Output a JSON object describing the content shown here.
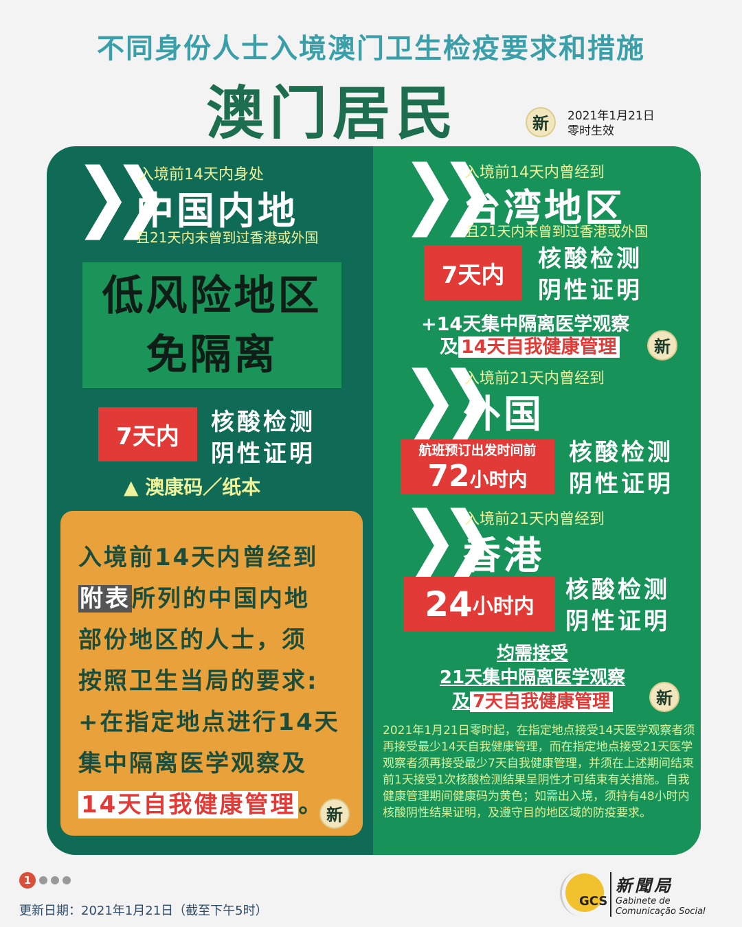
{
  "header": {
    "title": "不同身份人士入境澳门卫生检疫要求和措施",
    "subject": "澳门居民",
    "new_badge": "新",
    "effective_date": "2021年1月21日",
    "effective_time": "零时生效"
  },
  "mainland": {
    "pre": "入境前14天内身处",
    "region": "中国内地",
    "cond": "且21天内未曾到过香港或外国",
    "low_risk_1": "低风险地区",
    "low_risk_2": "免隔离",
    "test_time": "7天内",
    "test_1": "核酸检测",
    "test_2": "阴性证明",
    "code": "澳康码／纸本"
  },
  "listed": {
    "line1": "入境前14天内曾经到",
    "tag": "附表",
    "line2": "所列的中国内地",
    "line3": "部份地区的人士，须",
    "line4": "按照卫生当局的要求:",
    "line5": "+在指定地点进行14天",
    "line6": "集中隔离医学观察及",
    "line7": "14天自我健康管理",
    "line7_end": "。",
    "badge": "新"
  },
  "taiwan": {
    "pre": "入境前14天内曾经到",
    "region": "台湾地区",
    "cond": "且21天内未曾到过香港或外国",
    "test_time": "7天内",
    "test_1": "核酸检测",
    "test_2": "阴性证明",
    "extra_1": "+14天集中隔离医学观察",
    "extra_2_pre": "及",
    "extra_2": "14天自我健康管理",
    "badge": "新"
  },
  "foreign": {
    "pre": "入境前21天内曾经到",
    "region": "外国",
    "test_note": "航班预订出发时间前",
    "test_num": "72",
    "test_unit": "小时内",
    "test_1": "核酸检测",
    "test_2": "阴性证明"
  },
  "hongkong": {
    "pre": "入境前21天内曾经到",
    "region": "香港",
    "test_num": "24",
    "test_unit": "小时内",
    "test_1": "核酸检测",
    "test_2": "阴性证明"
  },
  "common": {
    "line1": "均需接受",
    "line2": "21天集中隔离医学观察",
    "line3_pre": "及",
    "line3": "7天自我健康管理",
    "badge": "新"
  },
  "note": "2021年1月21日零时起，在指定地点接受14天医学观察者须再接受最少14天自我健康管理，而在指定地点接受21天医学观察者须再接受最少7天自我健康管理，并须在上述期间结束前1天接受1次核酸检测结果呈阴性才可结束有关措施。自我健康管理期间健康码为黄色；如需出入境，须持有48小时内核酸阴性结果证明，及遵守目的地区域的防疫要求。",
  "footer": {
    "page": "1",
    "update": "更新日期：2021年1月21日（截至下午5时）",
    "logo_cn": "新聞局",
    "logo_pt_1": "Gabinete de",
    "logo_pt_2": "Comunicação Social",
    "logo_mark": "GCS"
  },
  "colors": {
    "left_panel": "#0f6b56",
    "right_panel": "#17935a",
    "red": "#e23a36",
    "orange": "#e9a23b"
  }
}
